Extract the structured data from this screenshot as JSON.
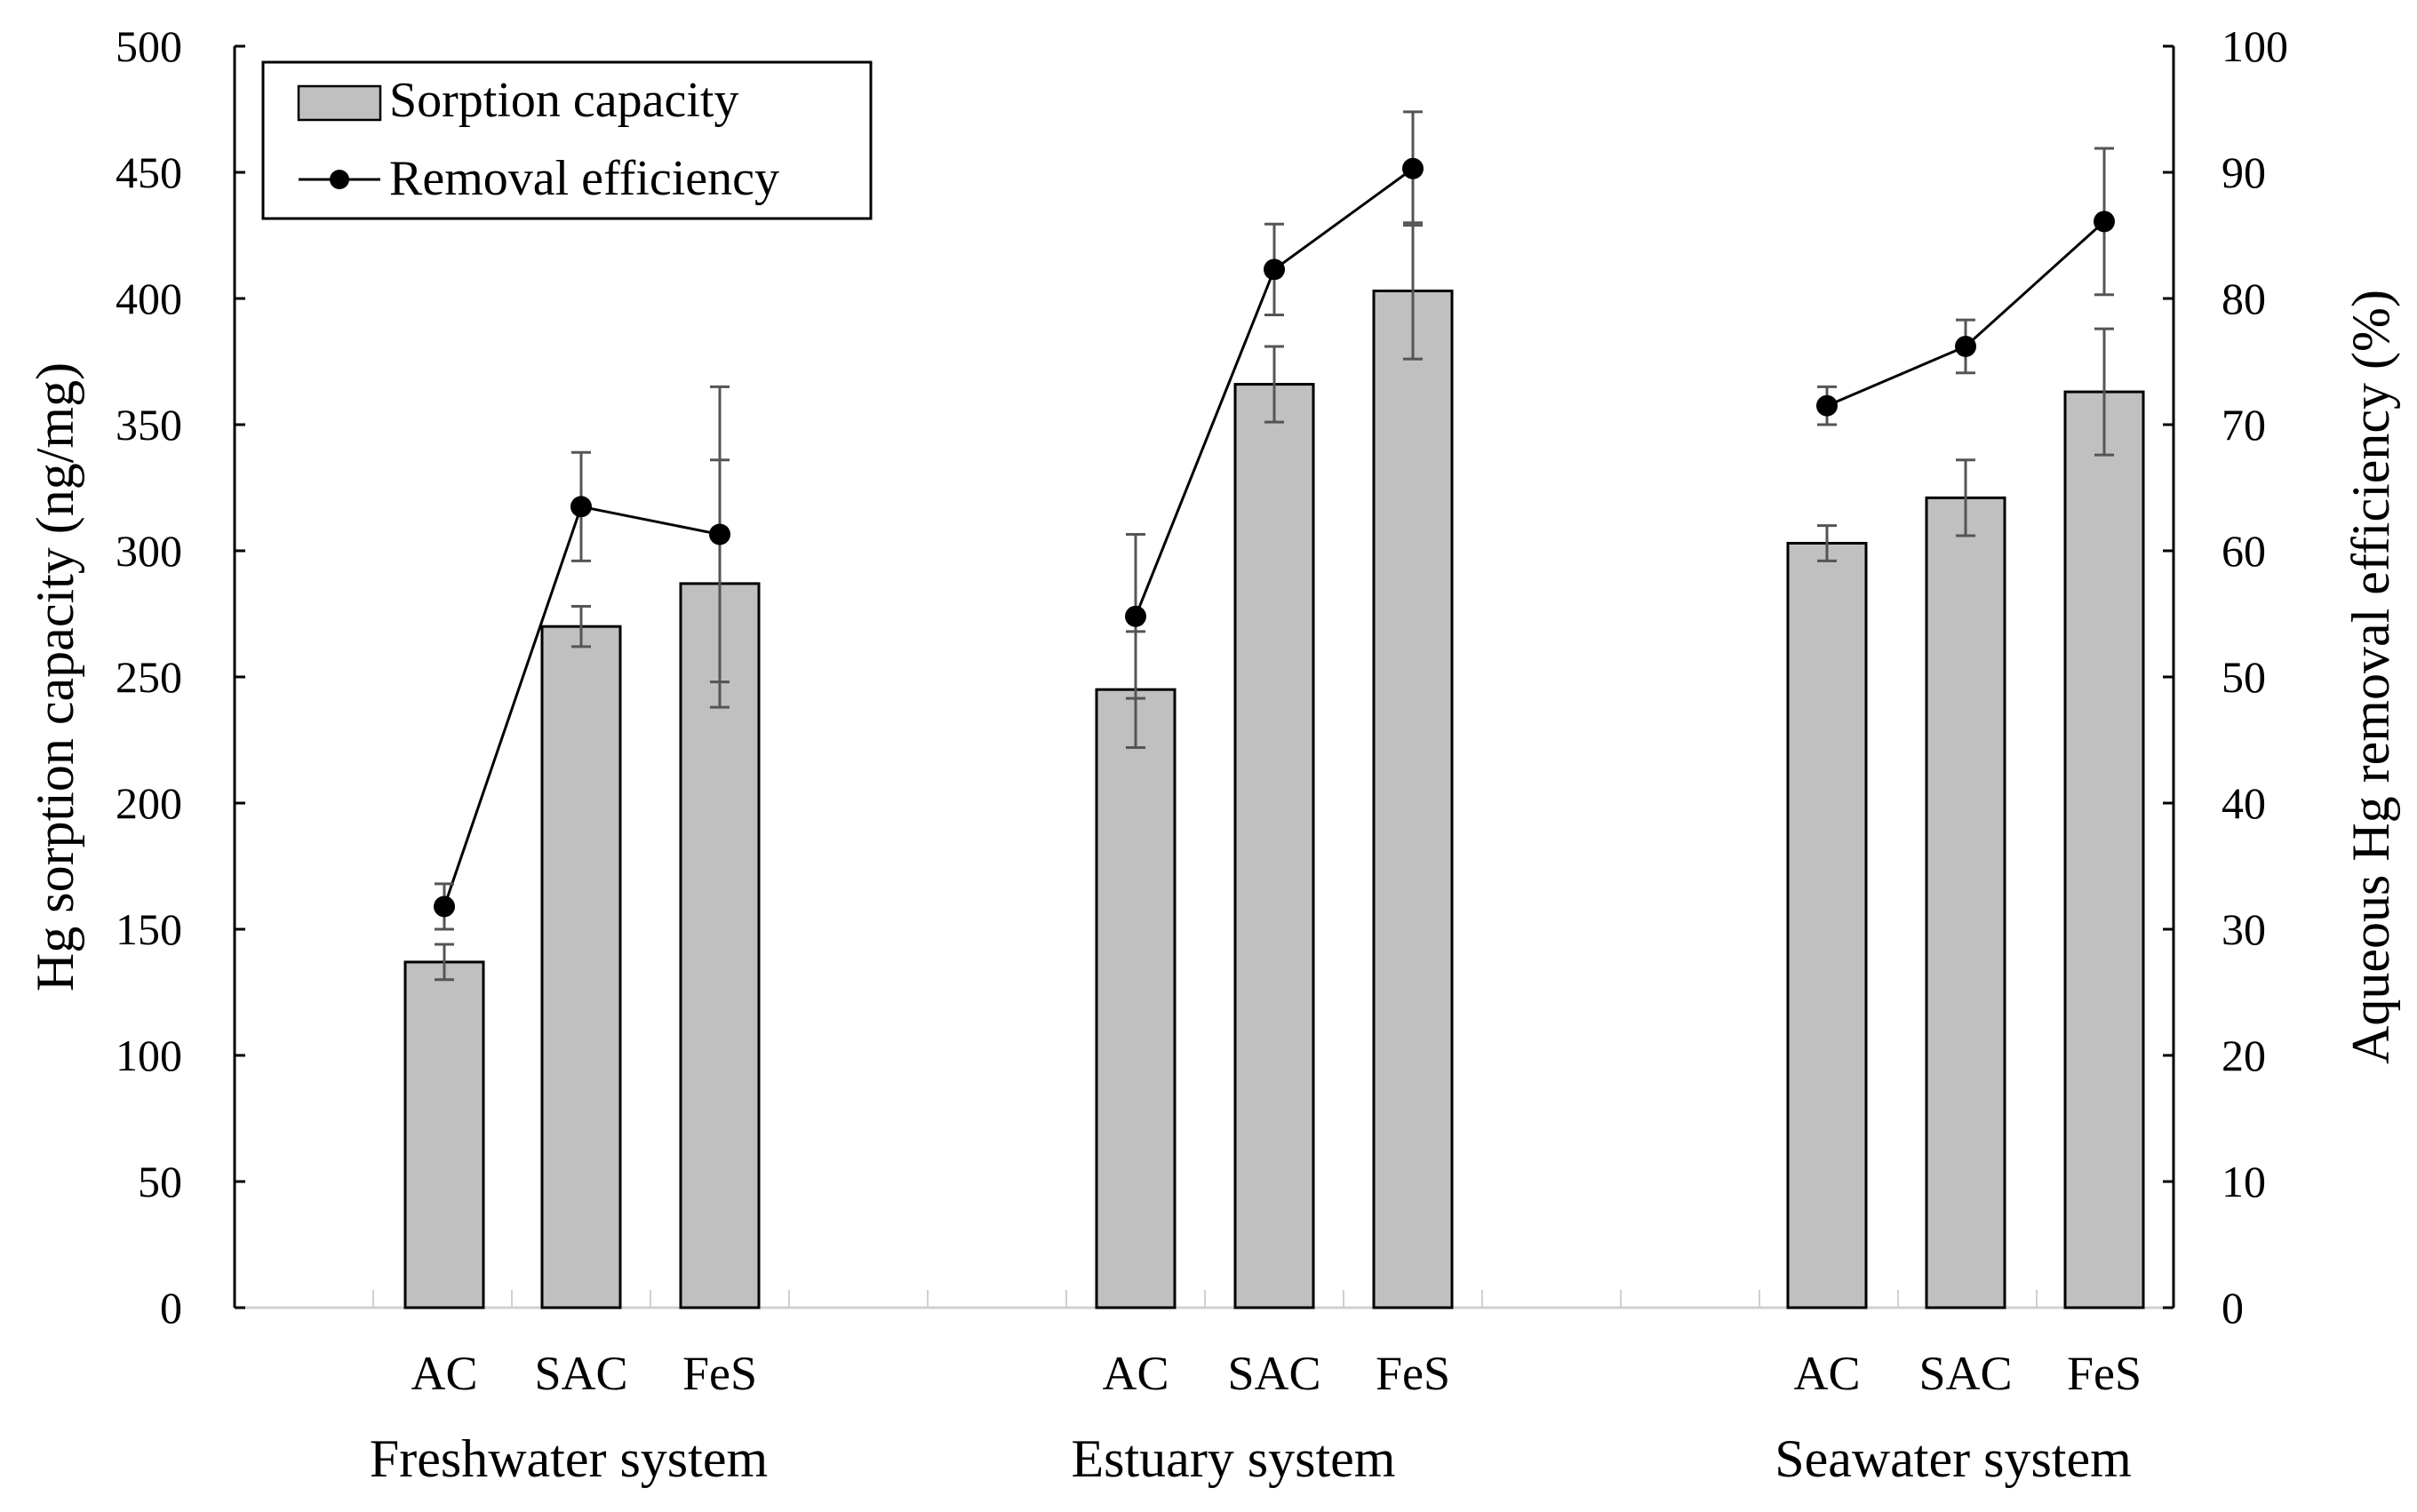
{
  "chart_data": {
    "type": "bar",
    "groups": [
      "Freshwater system",
      "Estuary system",
      "Seawater system"
    ],
    "categories": [
      "AC",
      "SAC",
      "FeS"
    ],
    "ylabel": "Hg sorption capacity (ng/mg)",
    "y2label": "Aqueous Hg removal efficiency (%)",
    "ylim": [
      0,
      500
    ],
    "y2lim": [
      0,
      100
    ],
    "yticks": [
      "0",
      "50",
      "100",
      "150",
      "200",
      "250",
      "300",
      "350",
      "400",
      "450",
      "500"
    ],
    "y2ticks": [
      "0",
      "10",
      "20",
      "30",
      "40",
      "50",
      "60",
      "70",
      "80",
      "90",
      "100"
    ],
    "legend": {
      "position": "top-left",
      "bar_label": "Sorption capacity",
      "line_label": "Removal efficiency"
    },
    "colors": {
      "bar_fill": "#c0c0c0",
      "bar_stroke": "#000000",
      "line": "#000000",
      "error_bar": "#555555"
    },
    "series": [
      {
        "name": "Sorption capacity",
        "kind": "bar",
        "axis": "left",
        "values": [
          [
            137,
            270,
            287
          ],
          [
            245,
            366,
            403
          ],
          [
            303,
            321,
            363
          ]
        ],
        "errors": [
          [
            7,
            8,
            49
          ],
          [
            23,
            15,
            27
          ],
          [
            7,
            15,
            25
          ]
        ]
      },
      {
        "name": "Removal efficiency",
        "kind": "line",
        "axis": "right",
        "values": [
          [
            31.8,
            63.5,
            61.3
          ],
          [
            54.8,
            82.3,
            90.3
          ],
          [
            71.5,
            76.2,
            86.1
          ]
        ],
        "errors": [
          [
            1.8,
            4.3,
            11.7
          ],
          [
            6.5,
            3.6,
            4.5
          ],
          [
            1.5,
            2.1,
            5.8
          ]
        ]
      }
    ]
  }
}
